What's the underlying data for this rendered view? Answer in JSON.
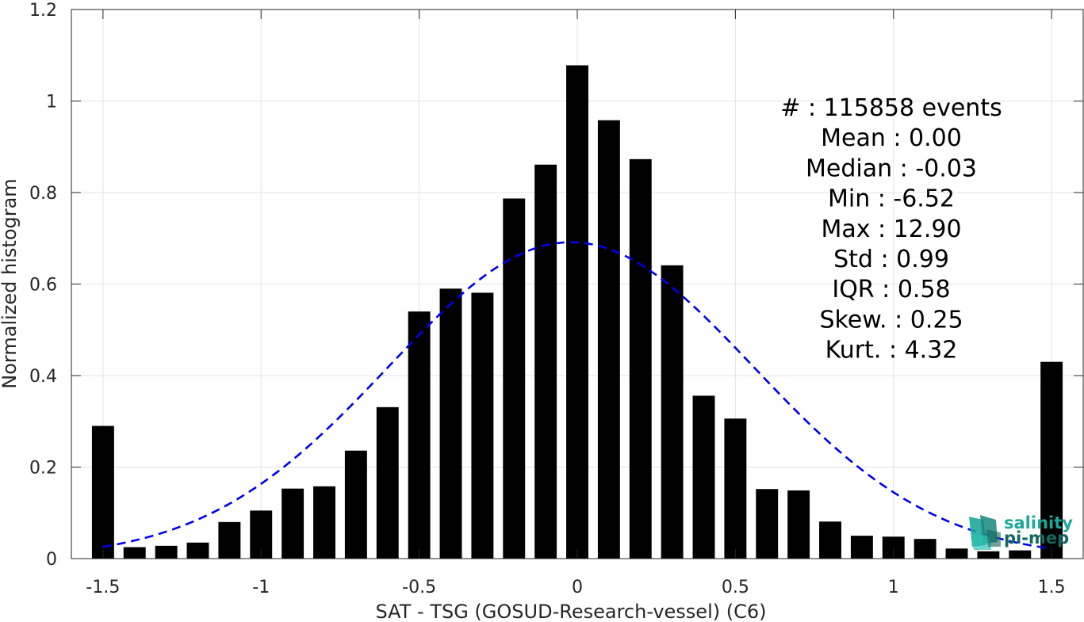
{
  "chart_data": {
    "type": "bar",
    "xlabel": "SAT - TSG (GOSUD-Research-vessel) (C6)",
    "ylabel": "Normalized histogram",
    "xlim": [
      -1.6,
      1.6
    ],
    "ylim": [
      0,
      1.2
    ],
    "xticks": [
      -1.5,
      -1,
      -0.5,
      0,
      0.5,
      1,
      1.5
    ],
    "xtick_labels": [
      "-1.5",
      "-1",
      "-0.5",
      "0",
      "0.5",
      "1",
      "1.5"
    ],
    "yticks": [
      0,
      0.2,
      0.4,
      0.6,
      0.8,
      1,
      1.2
    ],
    "ytick_labels": [
      "0",
      "0.2",
      "0.4",
      "0.6",
      "0.8",
      "1",
      "1.2"
    ],
    "grid": true,
    "bin_width": 0.1,
    "bar_width": 0.07,
    "bins": [
      -1.5,
      -1.4,
      -1.3,
      -1.2,
      -1.1,
      -1.0,
      -0.9,
      -0.8,
      -0.7,
      -0.6,
      -0.5,
      -0.4,
      -0.3,
      -0.2,
      -0.1,
      0.0,
      0.1,
      0.2,
      0.3,
      0.4,
      0.5,
      0.6,
      0.7,
      0.8,
      0.9,
      1.0,
      1.1,
      1.2,
      1.3,
      1.4,
      1.5
    ],
    "values": [
      0.29,
      0.025,
      0.028,
      0.035,
      0.08,
      0.105,
      0.153,
      0.158,
      0.236,
      0.331,
      0.54,
      0.59,
      0.581,
      0.787,
      0.861,
      1.078,
      0.958,
      0.873,
      0.641,
      0.356,
      0.306,
      0.152,
      0.149,
      0.081,
      0.05,
      0.048,
      0.043,
      0.022,
      0.016,
      0.018,
      0.43
    ],
    "bar_color": "#000000",
    "fit_curve": {
      "style": "dashed",
      "color": "#0000ee",
      "mean": -0.02,
      "std": 0.577,
      "x_range": [
        -1.5,
        1.5
      ]
    },
    "stats_lines": [
      "#   : 115858 events",
      "Mean : 0.00",
      "Median : -0.03",
      "Min : -6.52",
      "Max : 12.90",
      "Std : 0.99",
      "IQR : 0.58",
      "Skew. : 0.25",
      "Kurt. : 4.32"
    ]
  },
  "logo": {
    "line1": "salinity",
    "line2": "pi-mep",
    "color_primary": "#1fa79a",
    "color_dark": "#13685f"
  }
}
